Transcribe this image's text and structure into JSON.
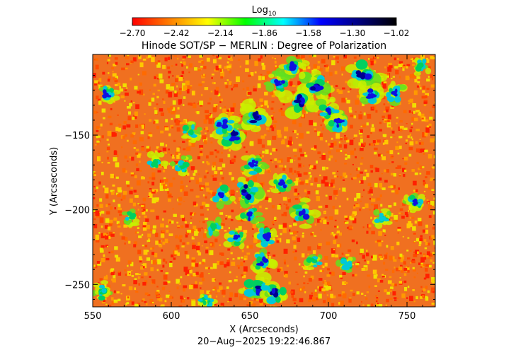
{
  "colorbar": {
    "label_main": "Log",
    "label_sub": "10",
    "ticks": [
      "−2.70",
      "−2.42",
      "−2.14",
      "−1.86",
      "−1.58",
      "−1.30",
      "−1.02"
    ],
    "range": [
      -2.7,
      -1.02
    ],
    "colormap": [
      "#ff0000",
      "#ff8000",
      "#ffff00",
      "#00ff00",
      "#00ffff",
      "#0000ff",
      "#000080",
      "#000000"
    ]
  },
  "chart_data": {
    "type": "heatmap",
    "title": "Hinode SOT/SP − MERLIN : Degree of Polarization",
    "xlabel": "X (Arcseconds)",
    "ylabel": "Y (Arcseconds)",
    "xlim": [
      550,
      768
    ],
    "ylim": [
      -265,
      -96
    ],
    "xticks": [
      550,
      600,
      650,
      700,
      750
    ],
    "xtick_labels": [
      "550",
      "600",
      "650",
      "700",
      "750"
    ],
    "yticks": [
      -150,
      -200,
      -250
    ],
    "ytick_labels": [
      "−150",
      "−200",
      "−250"
    ],
    "value_scale": "log10",
    "value_range": [
      -2.7,
      -1.02
    ],
    "background_color": "#f07020",
    "features": [
      {
        "x": 639,
        "y": -150,
        "level": 0.7
      },
      {
        "x": 654,
        "y": -138,
        "level": 0.75
      },
      {
        "x": 633,
        "y": -143,
        "level": 0.55
      },
      {
        "x": 648,
        "y": -188,
        "level": 0.7
      },
      {
        "x": 652,
        "y": -170,
        "level": 0.5
      },
      {
        "x": 632,
        "y": -190,
        "level": 0.45
      },
      {
        "x": 682,
        "y": -126,
        "level": 0.8
      },
      {
        "x": 692,
        "y": -118,
        "level": 0.75
      },
      {
        "x": 700,
        "y": -133,
        "level": 0.5
      },
      {
        "x": 669,
        "y": -115,
        "level": 0.45
      },
      {
        "x": 678,
        "y": -105,
        "level": 0.55
      },
      {
        "x": 722,
        "y": -110,
        "level": 0.8
      },
      {
        "x": 727,
        "y": -122,
        "level": 0.55
      },
      {
        "x": 707,
        "y": -142,
        "level": 0.5
      },
      {
        "x": 684,
        "y": -202,
        "level": 0.6
      },
      {
        "x": 671,
        "y": -182,
        "level": 0.45
      },
      {
        "x": 660,
        "y": -218,
        "level": 0.5
      },
      {
        "x": 658,
        "y": -235,
        "level": 0.5
      },
      {
        "x": 655,
        "y": -252,
        "level": 0.75
      },
      {
        "x": 665,
        "y": -255,
        "level": 0.7
      },
      {
        "x": 641,
        "y": -218,
        "level": 0.4
      },
      {
        "x": 650,
        "y": -204,
        "level": 0.45
      },
      {
        "x": 559,
        "y": -122,
        "level": 0.45
      },
      {
        "x": 612,
        "y": -148,
        "level": 0.35
      },
      {
        "x": 607,
        "y": -170,
        "level": 0.35
      },
      {
        "x": 590,
        "y": -168,
        "level": 0.3
      },
      {
        "x": 627,
        "y": -212,
        "level": 0.35
      },
      {
        "x": 742,
        "y": -122,
        "level": 0.4
      },
      {
        "x": 759,
        "y": -103,
        "level": 0.35
      },
      {
        "x": 755,
        "y": -196,
        "level": 0.4
      },
      {
        "x": 712,
        "y": -236,
        "level": 0.35
      },
      {
        "x": 734,
        "y": -206,
        "level": 0.3
      },
      {
        "x": 691,
        "y": -234,
        "level": 0.3
      },
      {
        "x": 557,
        "y": -255,
        "level": 0.35
      },
      {
        "x": 575,
        "y": -205,
        "level": 0.25
      },
      {
        "x": 622,
        "y": -262,
        "level": 0.3
      }
    ]
  },
  "timestamp": "20−Aug−2025 19:22:46.867"
}
